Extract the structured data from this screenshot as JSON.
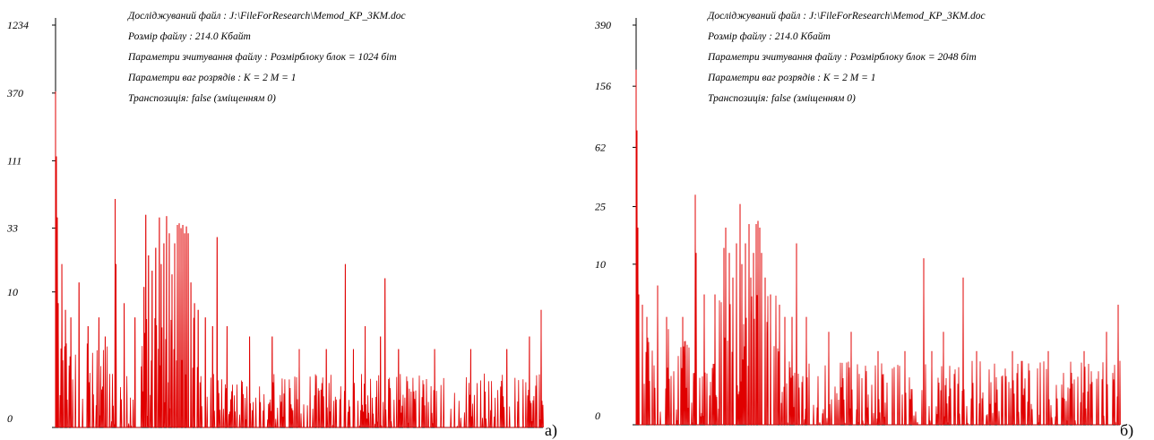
{
  "colors": {
    "series": "#e00000",
    "axis": "#000000",
    "background": "#ffffff"
  },
  "panels": [
    {
      "tag": "а)",
      "info": {
        "line1": "Досліджуваний файл : J:\\FileForResearch\\Memod_KP_3KM.doc",
        "line2": "Розмір файлу : 214.0 Кбайт",
        "line3": "Параметри зчитування файлу :  Розмірблоку блок = 1024 біт",
        "line4": "Параметри ваг розрядів : K = 2  M = 1",
        "line5": "Транспозиція: false (зміщенням 0)"
      }
    },
    {
      "tag": "б)",
      "info": {
        "line1": "Досліджуваний файл : J:\\FileForResearch\\Memod_KP_3KM.doc",
        "line2": "Розмір файлу : 214.0 Кбайт",
        "line3": "Параметри зчитування файлу :  Розмірблоку блок = 2048 біт",
        "line4": "Параметри ваг розрядів : K = 2  M = 1",
        "line5": "Транспозиція: false (зміщенням 0)"
      }
    }
  ],
  "chart_data": [
    {
      "type": "line",
      "yscale": "log",
      "ylim": [
        0,
        1234
      ],
      "yticks": [
        0,
        10,
        33,
        111,
        370,
        1234
      ],
      "ytick_labels": [
        "0",
        "10",
        "33",
        "111",
        "370",
        "1234"
      ],
      "xlim": [
        0,
        540
      ],
      "grid": false,
      "peaks": [
        {
          "x": 0,
          "y": 380
        },
        {
          "x": 1,
          "y": 120
        },
        {
          "x": 2,
          "y": 40
        },
        {
          "x": 3,
          "y": 8
        },
        {
          "x": 7,
          "y": 17
        },
        {
          "x": 11,
          "y": 7
        },
        {
          "x": 17,
          "y": 6
        },
        {
          "x": 26,
          "y": 12
        },
        {
          "x": 36,
          "y": 5
        },
        {
          "x": 48,
          "y": 6
        },
        {
          "x": 55,
          "y": 4
        },
        {
          "x": 66,
          "y": 56
        },
        {
          "x": 67,
          "y": 17
        },
        {
          "x": 76,
          "y": 8
        },
        {
          "x": 88,
          "y": 6
        },
        {
          "x": 98,
          "y": 11
        },
        {
          "x": 100,
          "y": 42
        },
        {
          "x": 103,
          "y": 20
        },
        {
          "x": 107,
          "y": 15
        },
        {
          "x": 111,
          "y": 23
        },
        {
          "x": 115,
          "y": 40
        },
        {
          "x": 117,
          "y": 17
        },
        {
          "x": 120,
          "y": 25
        },
        {
          "x": 123,
          "y": 41
        },
        {
          "x": 126,
          "y": 30
        },
        {
          "x": 129,
          "y": 14
        },
        {
          "x": 132,
          "y": 25
        },
        {
          "x": 135,
          "y": 35
        },
        {
          "x": 137,
          "y": 36
        },
        {
          "x": 139,
          "y": 33
        },
        {
          "x": 141,
          "y": 35
        },
        {
          "x": 143,
          "y": 30
        },
        {
          "x": 145,
          "y": 34
        },
        {
          "x": 147,
          "y": 30
        },
        {
          "x": 150,
          "y": 12
        },
        {
          "x": 154,
          "y": 8
        },
        {
          "x": 158,
          "y": 7
        },
        {
          "x": 166,
          "y": 6
        },
        {
          "x": 174,
          "y": 5
        },
        {
          "x": 179,
          "y": 28
        },
        {
          "x": 190,
          "y": 5
        },
        {
          "x": 215,
          "y": 4
        },
        {
          "x": 240,
          "y": 4
        },
        {
          "x": 270,
          "y": 3
        },
        {
          "x": 300,
          "y": 3
        },
        {
          "x": 321,
          "y": 17
        },
        {
          "x": 330,
          "y": 3
        },
        {
          "x": 343,
          "y": 5
        },
        {
          "x": 360,
          "y": 4
        },
        {
          "x": 365,
          "y": 13
        },
        {
          "x": 380,
          "y": 3
        },
        {
          "x": 420,
          "y": 3
        },
        {
          "x": 460,
          "y": 3
        },
        {
          "x": 500,
          "y": 3
        },
        {
          "x": 525,
          "y": 4
        },
        {
          "x": 538,
          "y": 7
        }
      ]
    },
    {
      "type": "line",
      "yscale": "log",
      "ylim": [
        0,
        390
      ],
      "yticks": [
        0,
        10,
        25,
        62,
        156,
        390
      ],
      "ytick_labels": [
        "0",
        "10",
        "25",
        "62",
        "156",
        "390"
      ],
      "xlim": [
        0,
        540
      ],
      "grid": false,
      "peaks": [
        {
          "x": 0,
          "y": 200
        },
        {
          "x": 1,
          "y": 80
        },
        {
          "x": 2,
          "y": 18
        },
        {
          "x": 3,
          "y": 6
        },
        {
          "x": 7,
          "y": 5
        },
        {
          "x": 12,
          "y": 4
        },
        {
          "x": 24,
          "y": 7
        },
        {
          "x": 34,
          "y": 4
        },
        {
          "x": 52,
          "y": 4
        },
        {
          "x": 66,
          "y": 30
        },
        {
          "x": 67,
          "y": 12
        },
        {
          "x": 76,
          "y": 6
        },
        {
          "x": 88,
          "y": 6
        },
        {
          "x": 98,
          "y": 13
        },
        {
          "x": 100,
          "y": 18
        },
        {
          "x": 104,
          "y": 12
        },
        {
          "x": 108,
          "y": 8
        },
        {
          "x": 112,
          "y": 14
        },
        {
          "x": 116,
          "y": 26
        },
        {
          "x": 118,
          "y": 10
        },
        {
          "x": 122,
          "y": 14
        },
        {
          "x": 126,
          "y": 19
        },
        {
          "x": 128,
          "y": 8
        },
        {
          "x": 131,
          "y": 12
        },
        {
          "x": 134,
          "y": 19
        },
        {
          "x": 136,
          "y": 20
        },
        {
          "x": 138,
          "y": 18
        },
        {
          "x": 140,
          "y": 12
        },
        {
          "x": 144,
          "y": 8
        },
        {
          "x": 150,
          "y": 6
        },
        {
          "x": 160,
          "y": 5
        },
        {
          "x": 166,
          "y": 4
        },
        {
          "x": 174,
          "y": 4
        },
        {
          "x": 179,
          "y": 14
        },
        {
          "x": 190,
          "y": 4
        },
        {
          "x": 215,
          "y": 3
        },
        {
          "x": 240,
          "y": 3
        },
        {
          "x": 270,
          "y": 2
        },
        {
          "x": 300,
          "y": 2
        },
        {
          "x": 321,
          "y": 11
        },
        {
          "x": 330,
          "y": 2
        },
        {
          "x": 343,
          "y": 3
        },
        {
          "x": 365,
          "y": 8
        },
        {
          "x": 380,
          "y": 2
        },
        {
          "x": 420,
          "y": 2
        },
        {
          "x": 460,
          "y": 2
        },
        {
          "x": 500,
          "y": 2
        },
        {
          "x": 525,
          "y": 3
        },
        {
          "x": 538,
          "y": 5
        }
      ]
    }
  ]
}
